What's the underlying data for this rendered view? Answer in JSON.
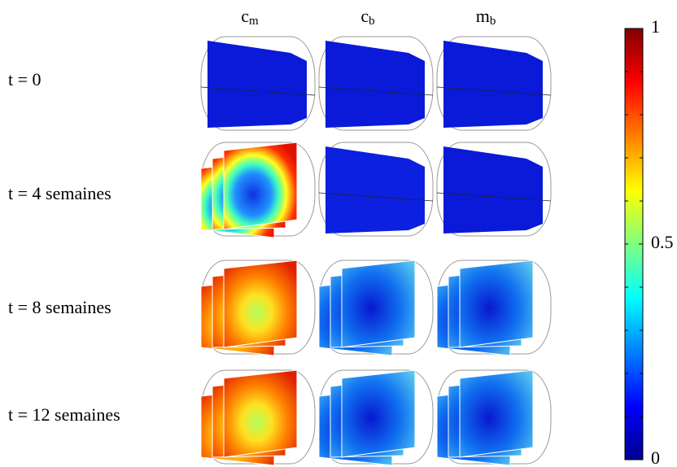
{
  "columns": [
    {
      "base": "c",
      "sub": "m"
    },
    {
      "base": "c",
      "sub": "b"
    },
    {
      "base": "m",
      "sub": "b"
    }
  ],
  "rows": [
    "t = 0",
    "t = 4 semaines",
    "t = 8 semaines",
    "t = 12 semaines"
  ],
  "colorbar": {
    "lim": [
      0,
      1
    ],
    "ticks": [
      0,
      0.5,
      1
    ]
  }
}
